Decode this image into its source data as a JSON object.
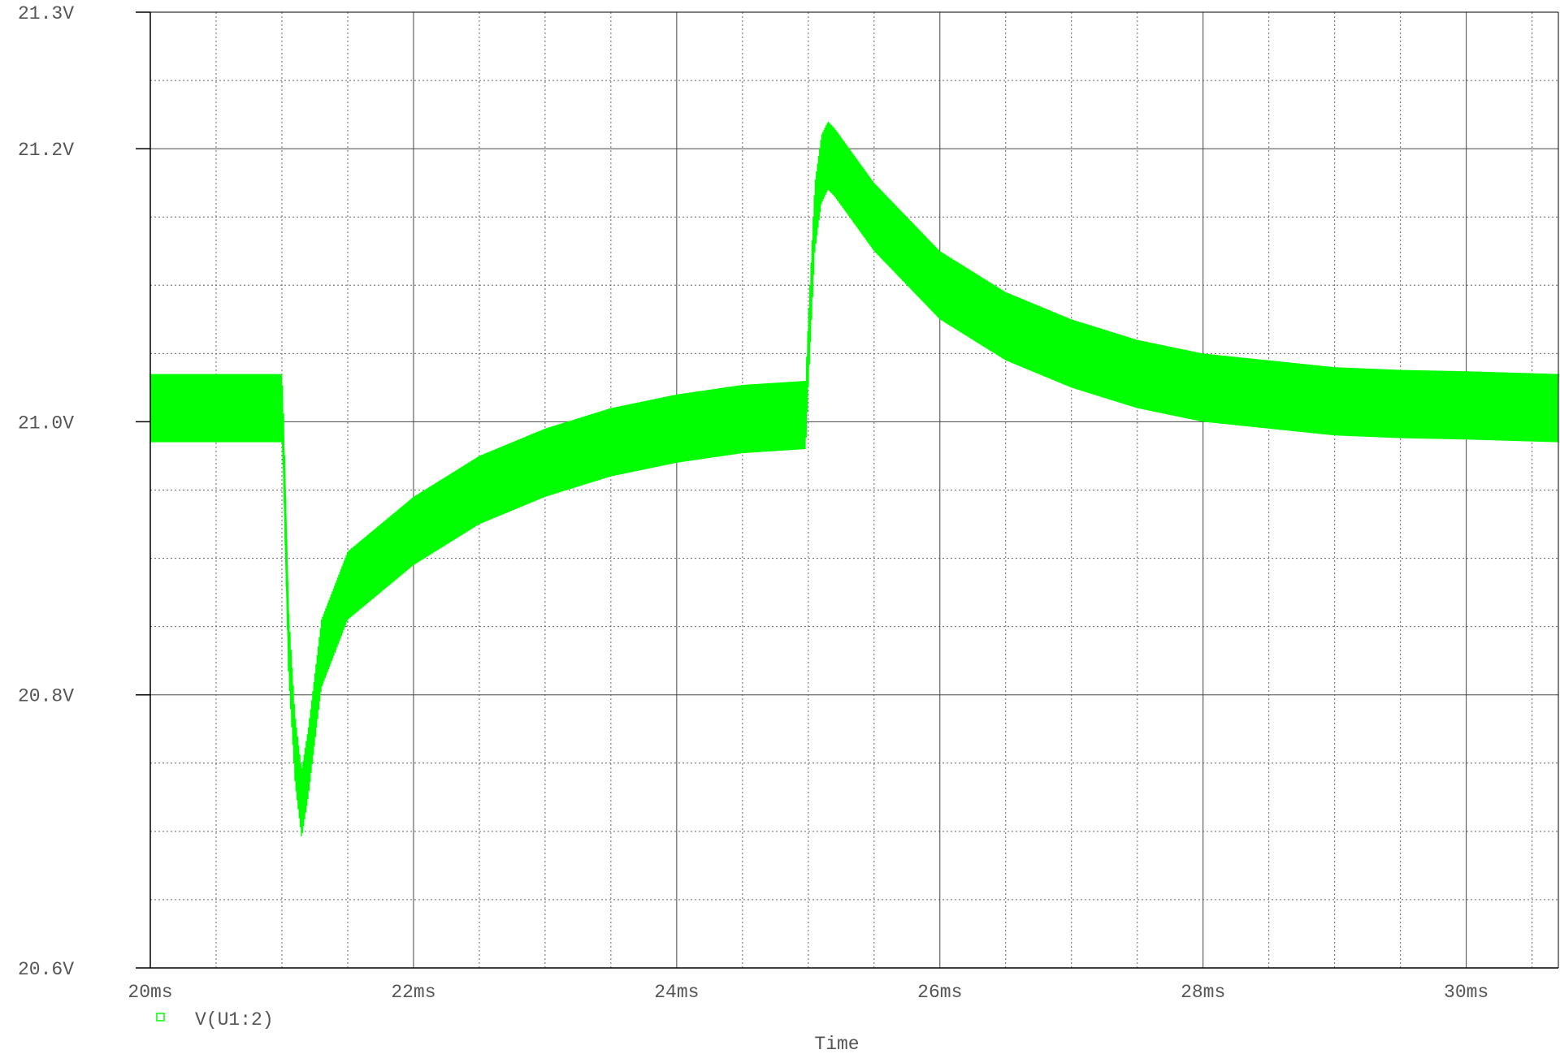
{
  "chart_data": {
    "type": "line",
    "title": "",
    "xlabel": "Time",
    "ylabel": "",
    "xlim": [
      20,
      30.7
    ],
    "ylim": [
      20.6,
      21.3
    ],
    "x_ticks": [
      20,
      22,
      24,
      26,
      28,
      30
    ],
    "x_tick_labels": [
      "20ms",
      "22ms",
      "24ms",
      "26ms",
      "28ms",
      "30ms"
    ],
    "y_ticks": [
      20.6,
      20.8,
      21.0,
      21.2,
      21.3
    ],
    "y_tick_labels": [
      "20.6V",
      "20.8V",
      "21.0V",
      "21.2V",
      "21.3V"
    ],
    "grid": true,
    "legend_position": "bottom-left",
    "series": [
      {
        "name": "V(U1:2)",
        "color": "#00ff00",
        "x_unit": "ms",
        "y_unit": "V",
        "x": [
          20.0,
          21.0,
          21.01,
          21.05,
          21.1,
          21.15,
          21.2,
          21.3,
          21.5,
          22.0,
          22.5,
          23.0,
          23.5,
          24.0,
          24.5,
          24.98,
          25.0,
          25.05,
          25.1,
          25.15,
          25.2,
          25.5,
          26.0,
          26.5,
          27.0,
          27.5,
          28.0,
          28.5,
          29.0,
          29.5,
          30.0,
          30.7
        ],
        "y": [
          21.01,
          21.01,
          20.99,
          20.84,
          20.76,
          20.72,
          20.75,
          20.83,
          20.88,
          20.92,
          20.95,
          20.97,
          20.985,
          20.995,
          21.002,
          21.005,
          21.05,
          21.15,
          21.185,
          21.195,
          21.19,
          21.15,
          21.1,
          21.07,
          21.05,
          21.035,
          21.025,
          21.02,
          21.015,
          21.013,
          21.012,
          21.01
        ],
        "ripple_pp": 0.05
      }
    ]
  }
}
